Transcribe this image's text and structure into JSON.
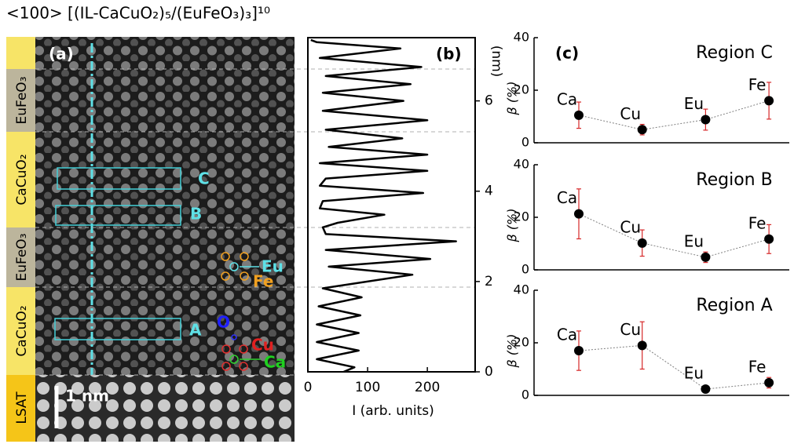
{
  "title": "<100> [(IL-CaCuO₂)₅/(EuFeO₃)₃]¹⁰",
  "panel_a": {
    "panel_label": "(a)",
    "layers": [
      "EuFeO₃",
      "CaCuO₂",
      "EuFeO₃",
      "CaCuO₂",
      "LSAT"
    ],
    "boxes": [
      "C",
      "B",
      "A"
    ],
    "atoms": [
      "Eu",
      "Fe",
      "O",
      "Cu",
      "Ca"
    ],
    "scale_bar": "1 nm"
  },
  "chart_data": [
    {
      "type": "line",
      "panel_label": "(b)",
      "xlabel": "I (arb. units)",
      "ylabel": "(nm)",
      "xlim": [
        0,
        280
      ],
      "xticks": [
        0,
        100,
        200
      ],
      "ylim": [
        0,
        7.4
      ],
      "yticks": [
        0,
        2,
        4,
        6
      ],
      "color": "#000000",
      "y": [
        0.0,
        0.1,
        0.28,
        0.47,
        0.66,
        0.86,
        1.05,
        1.25,
        1.45,
        1.65,
        1.85,
        2.15,
        2.33,
        2.5,
        2.7,
        2.89,
        3.05,
        3.2,
        3.3,
        3.48,
        3.62,
        3.78,
        3.96,
        4.12,
        4.28,
        4.45,
        4.62,
        4.81,
        4.98,
        5.17,
        5.36,
        5.57,
        5.78,
        6.0,
        6.18,
        6.37,
        6.55,
        6.75,
        6.95,
        7.16,
        7.3,
        7.35
      ],
      "x": [
        60,
        78,
        15,
        85,
        15,
        85,
        15,
        88,
        18,
        90,
        25,
        175,
        35,
        205,
        30,
        248,
        30,
        25,
        50,
        128,
        20,
        25,
        193,
        20,
        30,
        200,
        20,
        200,
        35,
        158,
        30,
        200,
        25,
        160,
        25,
        172,
        30,
        190,
        20,
        155,
        15,
        5
      ]
    },
    {
      "type": "errorbar",
      "panel_label": "(c)",
      "title": "Region C",
      "ylabel": "β (%)",
      "ylim": [
        0,
        40
      ],
      "yticks": [
        0,
        20,
        40
      ],
      "categories": [
        "Ca",
        "Cu",
        "Eu",
        "Fe"
      ],
      "values": [
        10.5,
        5,
        8.8,
        16
      ],
      "errors": [
        5,
        2,
        4,
        7
      ],
      "color": "#000000",
      "error_color": "#d62728",
      "line_color": "#808080"
    },
    {
      "type": "errorbar",
      "title": "Region B",
      "ylabel": "β (%)",
      "ylim": [
        0,
        40
      ],
      "yticks": [
        0,
        20,
        40
      ],
      "categories": [
        "Ca",
        "Cu",
        "Eu",
        "Fe"
      ],
      "values": [
        21.3,
        10.2,
        4.8,
        11.7
      ],
      "errors": [
        9.5,
        5,
        2,
        5.5
      ],
      "color": "#000000",
      "error_color": "#d62728",
      "line_color": "#808080"
    },
    {
      "type": "errorbar",
      "title": "Region A",
      "ylabel": "β (%)",
      "ylim": [
        0,
        40
      ],
      "yticks": [
        0,
        20,
        40
      ],
      "categories": [
        "Ca",
        "Cu",
        "Eu",
        "Fe"
      ],
      "values": [
        17,
        19,
        2.4,
        4.8
      ],
      "errors": [
        7.5,
        9,
        0.5,
        2
      ],
      "color": "#000000",
      "error_color": "#d62728",
      "line_color": "#808080"
    }
  ]
}
